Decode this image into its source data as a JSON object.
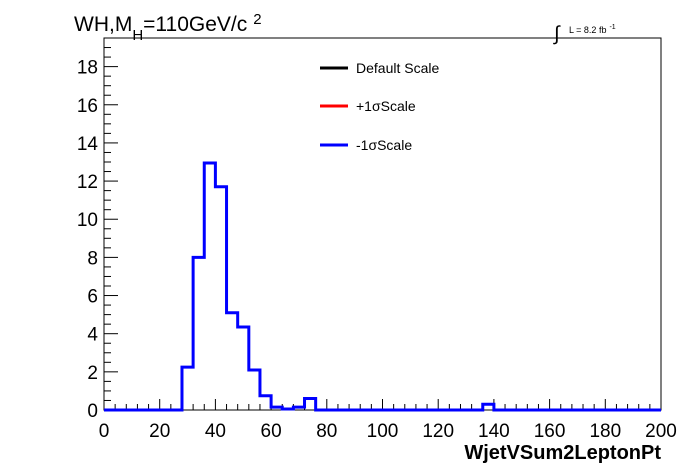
{
  "chart_data": {
    "type": "line",
    "step": true,
    "title": {
      "prefix": "WH,M",
      "subscript": "H",
      "suffix": "=110GeV/c",
      "superscript": "2"
    },
    "lumi": {
      "integral_symbol": "∫",
      "text": "L = 8.2 fb",
      "superscript": "-1"
    },
    "xlabel": "WjetVSum2LeptonPt",
    "ylabel": "",
    "xlim": [
      0,
      200
    ],
    "ylim": [
      0,
      19.5
    ],
    "x_ticks": [
      0,
      20,
      40,
      60,
      80,
      100,
      120,
      140,
      160,
      180,
      200
    ],
    "y_ticks": [
      0,
      2,
      4,
      6,
      8,
      10,
      12,
      14,
      16,
      18
    ],
    "bin_width": 4,
    "bin_edges_start": 0,
    "legend": {
      "position": "top-center",
      "entries": [
        {
          "label": "Default Scale",
          "color": "#000000"
        },
        {
          "label": "+1σScale",
          "color": "#ff0000"
        },
        {
          "label": "-1σScale",
          "color": "#0000ff"
        }
      ]
    },
    "series": [
      {
        "name": "-1σScale",
        "color": "#0000ff",
        "values": [
          0,
          0,
          0,
          0,
          0,
          0,
          0,
          2.25,
          8,
          12.95,
          11.7,
          5.1,
          4.35,
          2.1,
          0.75,
          0.15,
          0.05,
          0.15,
          0.6,
          0,
          0,
          0,
          0,
          0,
          0,
          0,
          0,
          0,
          0,
          0,
          0,
          0,
          0,
          0,
          0.3,
          0,
          0,
          0,
          0,
          0,
          0,
          0,
          0,
          0,
          0,
          0,
          0,
          0,
          0,
          0
        ]
      }
    ]
  }
}
